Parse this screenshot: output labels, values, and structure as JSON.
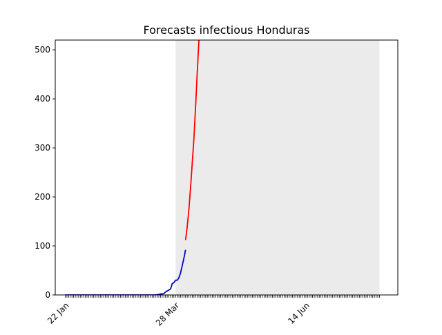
{
  "chart_data": {
    "type": "line",
    "title": "Forecasts infectious Honduras",
    "xlabel": "",
    "ylabel": "",
    "x_axis": {
      "start": "22 Jan",
      "end": "28 Jul",
      "tick_labels": [
        {
          "label": "22 Jan",
          "day": 0
        },
        {
          "label": "28 Mar",
          "day": 66
        },
        {
          "label": "14 Jun",
          "day": 144
        }
      ]
    },
    "ylim": [
      0,
      520
    ],
    "yticks": [
      0,
      100,
      200,
      300,
      400,
      500
    ],
    "grid": false,
    "legend": "none",
    "forecast_band": {
      "start_day": 66,
      "end_day": 188,
      "color": "#ebebeb"
    },
    "series": [
      {
        "color": "#0000cc",
        "points": [
          [
            0,
            0
          ],
          [
            10,
            0
          ],
          [
            20,
            0
          ],
          [
            30,
            0
          ],
          [
            40,
            0
          ],
          [
            50,
            0
          ],
          [
            54,
            0
          ],
          [
            56,
            1
          ],
          [
            57,
            2
          ],
          [
            58,
            2
          ],
          [
            59,
            3
          ],
          [
            60,
            6
          ],
          [
            61,
            8
          ],
          [
            62,
            10
          ],
          [
            63,
            12
          ],
          [
            64,
            23
          ],
          [
            65,
            25
          ],
          [
            66,
            30
          ],
          [
            67,
            30
          ],
          [
            68,
            35
          ],
          [
            69,
            45
          ],
          [
            70,
            60
          ],
          [
            71,
            75
          ],
          [
            72,
            92
          ]
        ]
      },
      {
        "color": "#ff0000",
        "points": [
          [
            72,
            112
          ],
          [
            73,
            140
          ],
          [
            74,
            175
          ],
          [
            75,
            220
          ],
          [
            76,
            270
          ],
          [
            77,
            320
          ],
          [
            78,
            385
          ],
          [
            79,
            455
          ],
          [
            80,
            520
          ]
        ]
      }
    ]
  }
}
